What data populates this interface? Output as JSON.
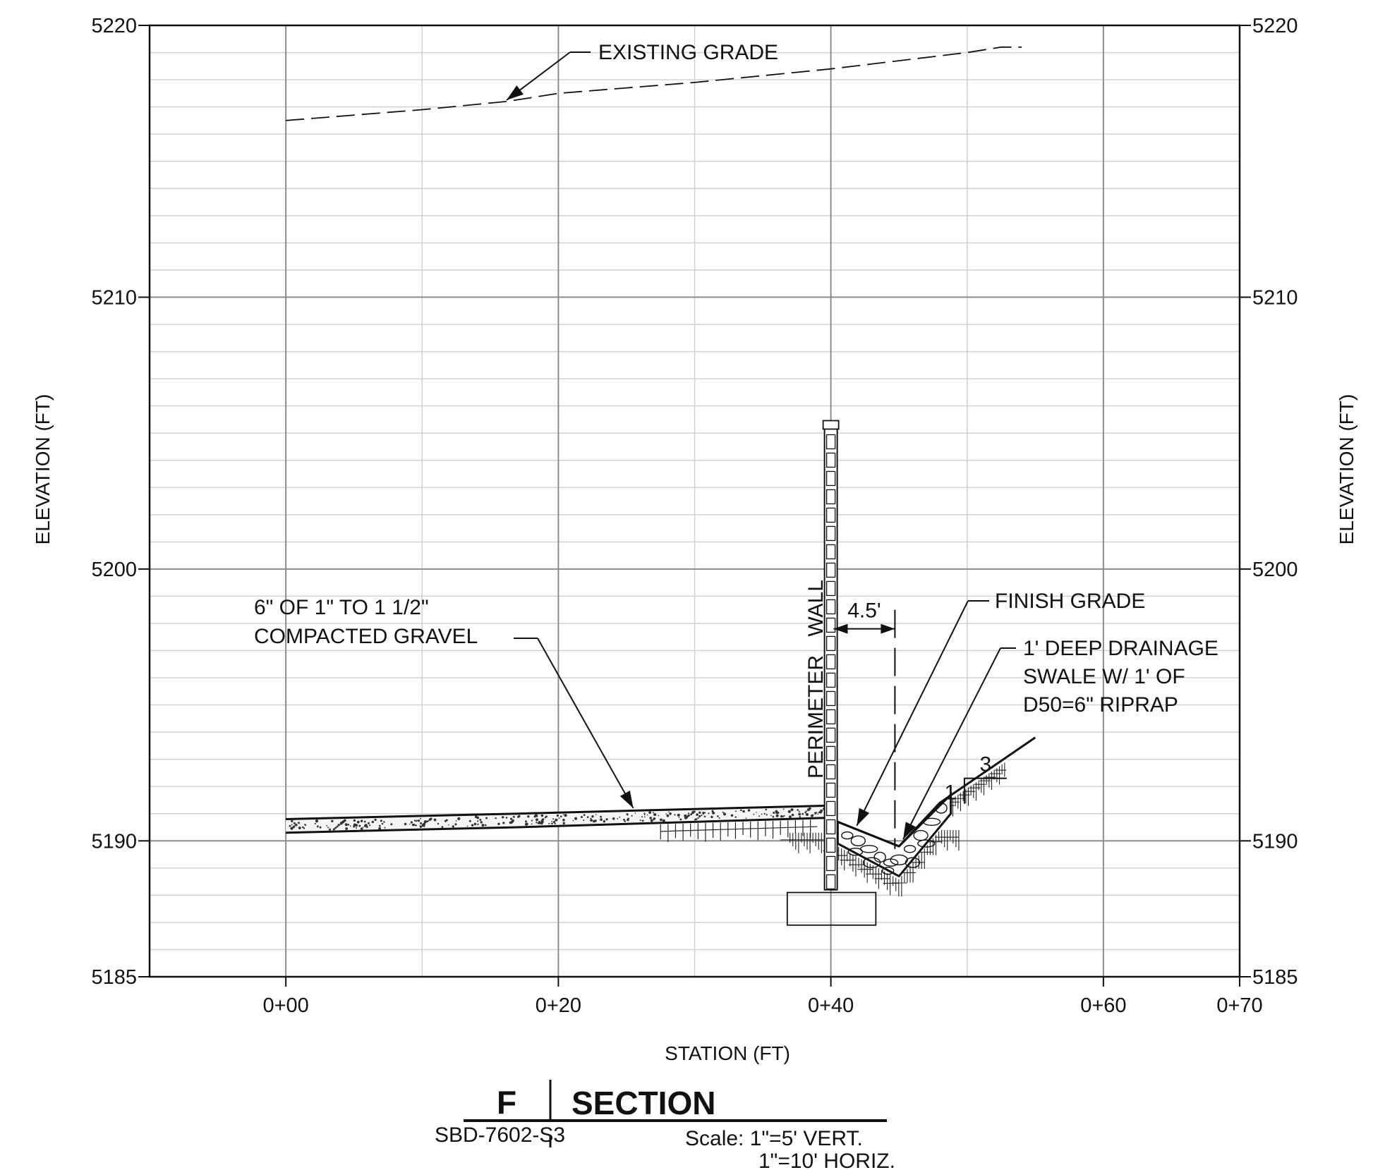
{
  "chart_data": {
    "type": "cross-section",
    "xlabel": "STATION (FT)",
    "ylabel": "ELEVATION (FT)",
    "xlim": [
      -10,
      70
    ],
    "ylim": [
      5185,
      5220
    ],
    "x_ticks": [
      {
        "value": 0,
        "label": "0+00"
      },
      {
        "value": 20,
        "label": "0+20"
      },
      {
        "value": 40,
        "label": "0+40"
      },
      {
        "value": 60,
        "label": "0+60"
      },
      {
        "value": 70,
        "label": "0+70"
      }
    ],
    "y_ticks": [
      5185,
      5190,
      5200,
      5210,
      5220
    ],
    "major_grid_x": [
      0,
      20,
      40,
      60
    ],
    "minor_grid_x": [
      10,
      30,
      50
    ],
    "major_grid_y": [
      5190,
      5200,
      5210
    ],
    "minor_grid_y_step": 1,
    "existing_grade": [
      [
        0,
        5216.5
      ],
      [
        10,
        5216.9
      ],
      [
        16.2,
        5217.2
      ],
      [
        20,
        5217.5
      ],
      [
        30,
        5217.9
      ],
      [
        40,
        5218.4
      ],
      [
        50,
        5219.0
      ],
      [
        52.5,
        5219.2
      ],
      [
        54,
        5219.2
      ]
    ],
    "gravel_top": [
      [
        0,
        5190.8
      ],
      [
        17,
        5191.0
      ],
      [
        40,
        5191.3
      ]
    ],
    "gravel_bottom": [
      [
        0,
        5190.3
      ],
      [
        17,
        5190.5
      ],
      [
        40,
        5190.85
      ]
    ],
    "finish_grade": [
      [
        40,
        5190.85
      ],
      [
        40.5,
        5190.7
      ],
      [
        45,
        5189.8
      ],
      [
        48,
        5191.4
      ],
      [
        55,
        5193.8
      ]
    ],
    "riprap_bottom": [
      [
        40.5,
        5189.9
      ],
      [
        45,
        5188.7
      ],
      [
        48.8,
        5191.0
      ]
    ],
    "wall": {
      "station": 40,
      "top": 5205.2,
      "bottom": 5188.2
    },
    "footing": {
      "x0": 36.8,
      "x1": 43.3,
      "y0": 5186.9,
      "y1": 5188.1
    },
    "dimension": {
      "label": "4.5'",
      "x0": 40.2,
      "x1": 44.7,
      "y": 5197.8
    },
    "slope": {
      "run": "3",
      "rise": "1"
    },
    "annotations": {
      "existing_grade": "EXISTING GRADE",
      "wall": "PERIMETER WALL",
      "finish_grade": "FINISH GRADE",
      "gravel_line1": "6\" OF 1\" TO 1 1/2\"",
      "gravel_line2": "COMPACTED GRAVEL",
      "swale_line1": "1' DEEP DRAINAGE",
      "swale_line2": "SWALE W/ 1' OF",
      "swale_line3": "D50=6\" RIPRAP"
    }
  },
  "title_block": {
    "letter": "F",
    "title": "SECTION",
    "sheet": "SBD-7602-S3",
    "scale_vert": "Scale: 1\"=5' VERT.",
    "scale_horiz": "1\"=10' HORIZ."
  }
}
